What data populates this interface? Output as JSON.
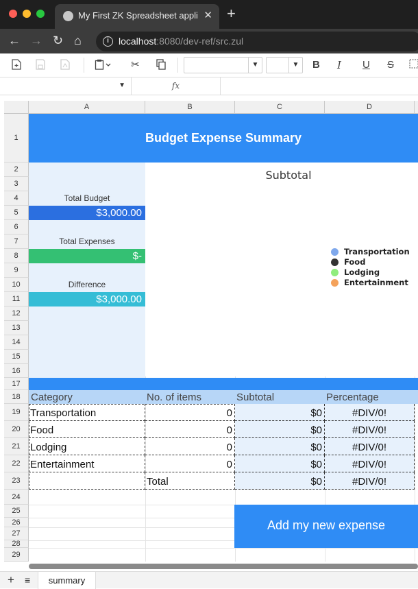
{
  "browser": {
    "tab_title": "My First ZK Spreadsheet applic",
    "url_host": "localhost",
    "url_rest": ":8080/dev-ref/src.zul"
  },
  "toolbar": {
    "icons": [
      "new-file-icon",
      "save-icon",
      "export-icon",
      "paste-icon",
      "cut-icon",
      "copy-icon",
      "bold-icon",
      "italic-icon",
      "underline-icon",
      "strikethrough-icon",
      "border-icon"
    ],
    "bold": "B",
    "italic": "I",
    "underline": "U",
    "strike": "S"
  },
  "formula_bar": {
    "fx": "fx"
  },
  "columns": [
    "A",
    "B",
    "C",
    "D"
  ],
  "rows": [
    "1",
    "2",
    "3",
    "4",
    "5",
    "6",
    "7",
    "8",
    "9",
    "10",
    "11",
    "12",
    "13",
    "14",
    "15",
    "16",
    "17",
    "18",
    "19",
    "20",
    "21",
    "22",
    "23",
    "24",
    "25",
    "26",
    "27",
    "28",
    "29"
  ],
  "sheet": {
    "title": "Budget Expense Summary",
    "total_budget_label": "Total Budget",
    "total_budget_value": "$3,000.00",
    "total_expenses_label": "Total Expenses",
    "total_expenses_value": "$-",
    "difference_label": "Difference",
    "difference_value": "$3,000.00",
    "table_headers": [
      "Category",
      "No. of items",
      "Subtotal",
      "Percentage"
    ],
    "table_rows": [
      {
        "category": "Transportation",
        "items": "0",
        "subtotal": "$0",
        "percentage": "#DIV/0!"
      },
      {
        "category": "Food",
        "items": "0",
        "subtotal": "$0",
        "percentage": "#DIV/0!"
      },
      {
        "category": "Lodging",
        "items": "0",
        "subtotal": "$0",
        "percentage": "#DIV/0!"
      },
      {
        "category": "Entertainment",
        "items": "0",
        "subtotal": "$0",
        "percentage": "#DIV/0!"
      }
    ],
    "total_row": {
      "label": "Total",
      "subtotal": "$0",
      "percentage": "#DIV/0!"
    },
    "add_button": "Add my new expense"
  },
  "chart": {
    "title": "Subtotal",
    "legend": [
      {
        "label": "Transportation",
        "color": "#7fa8ec"
      },
      {
        "label": "Food",
        "color": "#333333"
      },
      {
        "label": "Lodging",
        "color": "#90ed7d"
      },
      {
        "label": "Entertainment",
        "color": "#f4a25b"
      }
    ]
  },
  "colors": {
    "accent_blue": "#2f8cf5",
    "budget_blue": "#2b6fe0",
    "expenses_green": "#34c073",
    "difference_teal": "#35bdd6",
    "panel_light": "#e7f1fc",
    "header_row": "#b7d6f7"
  },
  "sheet_tabs": [
    "summary"
  ]
}
